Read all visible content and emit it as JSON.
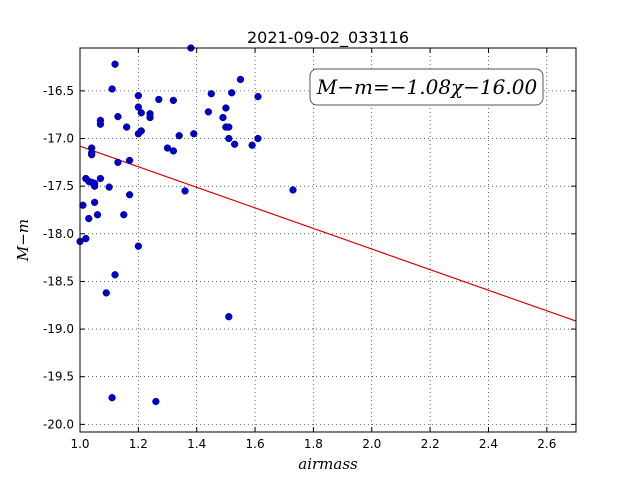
{
  "chart_data": {
    "type": "scatter",
    "title": "2021-09-02_033116",
    "xlabel": "airmass",
    "ylabel": "M−m",
    "annotation": "M−m=−1.08χ−16.00",
    "xlim": [
      1.0,
      2.7
    ],
    "ylim": [
      -20.08,
      -16.05
    ],
    "y_inverted": true,
    "grid": true,
    "x_ticks": [
      "1.0",
      "1.2",
      "1.4",
      "1.6",
      "1.8",
      "2.0",
      "2.2",
      "2.4",
      "2.6"
    ],
    "x_tick_values": [
      1.0,
      1.2,
      1.4,
      1.6,
      1.8,
      2.0,
      2.2,
      2.4,
      2.6
    ],
    "y_ticks": [
      "-16.5",
      "-17.0",
      "-17.5",
      "-18.0",
      "-18.5",
      "-19.0",
      "-19.5",
      "-20.0"
    ],
    "y_tick_values": [
      -16.5,
      -17.0,
      -17.5,
      -18.0,
      -18.5,
      -19.0,
      -19.5,
      -20.0
    ],
    "colors": {
      "points": "#0000cc",
      "fit_line": "#dd0000"
    },
    "fit_line": {
      "slope": -1.08,
      "intercept": -16.0
    },
    "series": [
      {
        "points": [
          [
            1.38,
            -16.05
          ],
          [
            1.12,
            -16.22
          ],
          [
            1.55,
            -16.38
          ],
          [
            1.45,
            -16.53
          ],
          [
            1.11,
            -16.48
          ],
          [
            1.61,
            -16.56
          ],
          [
            1.2,
            -16.55
          ],
          [
            1.52,
            -16.52
          ],
          [
            1.27,
            -16.59
          ],
          [
            1.32,
            -16.6
          ],
          [
            1.2,
            -16.67
          ],
          [
            1.5,
            -16.68
          ],
          [
            1.21,
            -16.73
          ],
          [
            1.44,
            -16.72
          ],
          [
            1.13,
            -16.77
          ],
          [
            1.24,
            -16.74
          ],
          [
            1.24,
            -16.78
          ],
          [
            1.49,
            -16.78
          ],
          [
            1.07,
            -16.81
          ],
          [
            1.07,
            -16.85
          ],
          [
            1.16,
            -16.88
          ],
          [
            1.5,
            -16.88
          ],
          [
            1.51,
            -16.88
          ],
          [
            1.21,
            -16.92
          ],
          [
            1.2,
            -16.95
          ],
          [
            1.39,
            -16.95
          ],
          [
            1.34,
            -16.97
          ],
          [
            1.51,
            -17.0
          ],
          [
            1.61,
            -17.0
          ],
          [
            1.53,
            -17.06
          ],
          [
            1.59,
            -17.07
          ],
          [
            1.3,
            -17.1
          ],
          [
            1.32,
            -17.13
          ],
          [
            1.04,
            -17.1
          ],
          [
            1.04,
            -17.15
          ],
          [
            1.04,
            -17.17
          ],
          [
            1.17,
            -17.23
          ],
          [
            1.13,
            -17.25
          ],
          [
            1.02,
            -17.42
          ],
          [
            1.07,
            -17.42
          ],
          [
            1.03,
            -17.45
          ],
          [
            1.04,
            -17.46
          ],
          [
            1.05,
            -17.47
          ],
          [
            1.05,
            -17.5
          ],
          [
            1.1,
            -17.51
          ],
          [
            1.36,
            -17.55
          ],
          [
            1.17,
            -17.59
          ],
          [
            1.73,
            -17.54
          ],
          [
            1.05,
            -17.67
          ],
          [
            1.01,
            -17.7
          ],
          [
            1.06,
            -17.8
          ],
          [
            1.15,
            -17.8
          ],
          [
            1.03,
            -17.84
          ],
          [
            1.02,
            -18.05
          ],
          [
            1.0,
            -18.08
          ],
          [
            1.2,
            -18.13
          ],
          [
            1.12,
            -18.43
          ],
          [
            1.09,
            -18.62
          ],
          [
            1.51,
            -18.87
          ],
          [
            1.11,
            -19.72
          ],
          [
            1.26,
            -19.76
          ]
        ]
      }
    ]
  }
}
